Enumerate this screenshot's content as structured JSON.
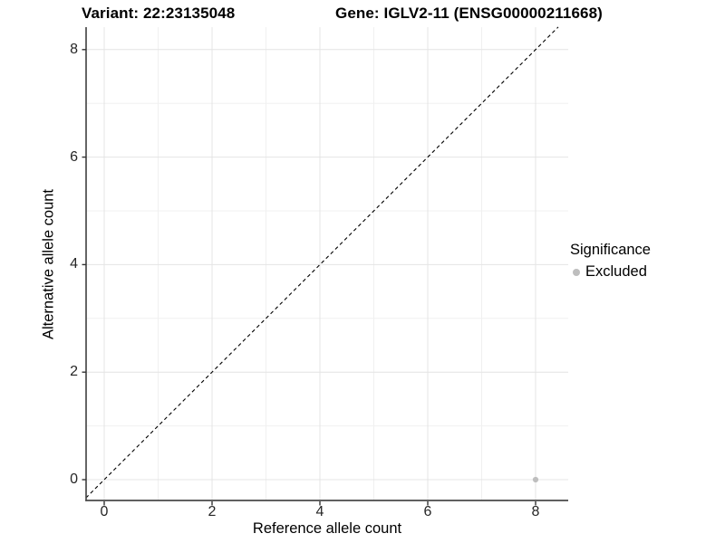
{
  "chart_data": {
    "type": "scatter",
    "title_left": "Variant: 22:23135048",
    "title_right": "Gene: IGLV2-11 (ENSG00000211668)",
    "xlabel": "Reference allele count",
    "ylabel": "Alternative allele count",
    "xlim": [
      -0.34,
      8.6
    ],
    "ylim": [
      -0.39,
      8.42
    ],
    "x_ticks": [
      0,
      2,
      4,
      6,
      8
    ],
    "y_ticks": [
      0,
      2,
      4,
      6,
      8
    ],
    "minor_ticks": [
      1,
      3,
      5,
      7
    ],
    "grid": "major and minor, light grey on white background",
    "reference_line": {
      "type": "identity y=x",
      "style": "dashed",
      "color": "#000000"
    },
    "series": [
      {
        "name": "Excluded",
        "color": "#BEBEBE",
        "points": [
          {
            "x": 8,
            "y": 0
          }
        ]
      }
    ],
    "legend": {
      "title": "Significance",
      "position": "right",
      "items": [
        {
          "label": "Excluded",
          "color": "#BEBEBE"
        }
      ]
    }
  },
  "colors": {
    "background": "#FFFFFF",
    "major_grid": "#E4E4E4",
    "minor_grid": "#F0F0F0",
    "axis_line": "#4A4A4A",
    "tick_mark": "#333333",
    "point": "#BEBEBE",
    "text": "#000000"
  }
}
